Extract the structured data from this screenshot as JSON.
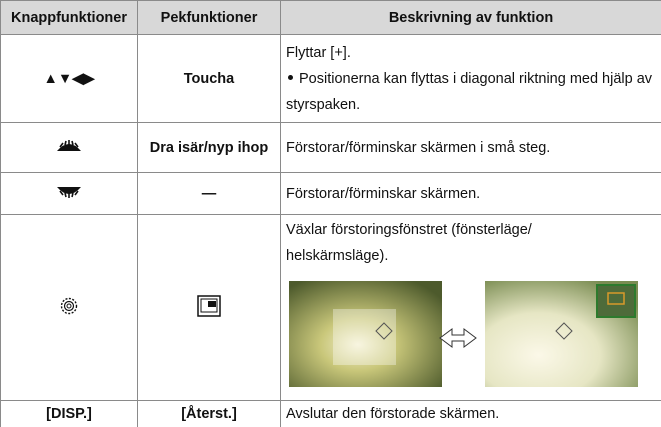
{
  "table": {
    "header": [
      "Knappfunktioner",
      "Pekfunktioner",
      "Beskrivning av funktion"
    ],
    "rows": [
      {
        "button": "▲▼◀▶",
        "touch": "Toucha",
        "description": [
          "Flyttar [+].",
          "Positionerna kan flyttas i diagonal riktning med hjälp av styrspaken."
        ]
      },
      {
        "touch": "Dra isär/nyp ihop",
        "description": [
          "Förstorar/förminskar skärmen i små steg."
        ]
      },
      {
        "touch": "—",
        "description": [
          "Förstorar/förminskar skärmen."
        ]
      },
      {
        "description": [
          "Växlar förstoringsfönstret (fönsterläge/ helskärmsläge)."
        ]
      },
      {
        "button": "[DISP.]",
        "touch": "[Återst.]",
        "description": [
          "Avslutar den förstorade skärmen."
        ]
      }
    ]
  }
}
